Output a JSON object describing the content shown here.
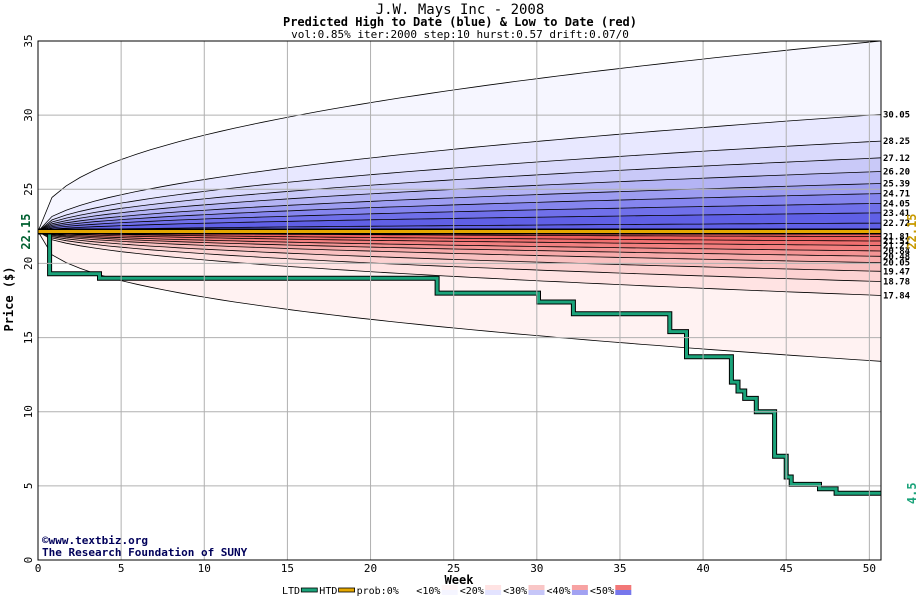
{
  "chart_data": {
    "type": "area",
    "title": "J.W. Mays Inc - 2008",
    "subtitle": "Predicted High to Date (blue) &  Low to Date (red)",
    "params": "vol:0.85% iter:2000 step:10 hurst:0.57 drift:0.07/0",
    "xlabel": "Week",
    "ylabel": "Price ($)",
    "xlim": [
      0,
      50.7
    ],
    "ylim": [
      0,
      35
    ],
    "x_ticks": [
      0,
      5,
      10,
      15,
      20,
      25,
      30,
      35,
      40,
      45,
      50
    ],
    "y_ticks": [
      0,
      5,
      10,
      15,
      20,
      25,
      30,
      35
    ],
    "grid": true,
    "start_price": 22.15,
    "start_label": "22.15",
    "last_price": 4.5,
    "last_label": "4.5",
    "credit_lines": [
      "©www.textbiz.org",
      "The Research Foundation of SUNY"
    ],
    "upper_band_ends": [
      {
        "label": "30.05",
        "value": 30.05
      },
      {
        "label": "28.25",
        "value": 28.25
      },
      {
        "label": "27.12",
        "value": 27.12
      },
      {
        "label": "26.20",
        "value": 26.2
      },
      {
        "label": "25.39",
        "value": 25.39
      },
      {
        "label": "24.71",
        "value": 24.71
      },
      {
        "label": "24.05",
        "value": 24.05
      },
      {
        "label": "23.41",
        "value": 23.41
      },
      {
        "label": "22.72",
        "value": 22.72
      }
    ],
    "lower_band_ends": [
      {
        "label": "21.81",
        "value": 21.81
      },
      {
        "label": "21.51",
        "value": 21.51
      },
      {
        "label": "21.21",
        "value": 21.21
      },
      {
        "label": "20.84",
        "value": 20.84
      },
      {
        "label": "20.48",
        "value": 20.48
      },
      {
        "label": "20.05",
        "value": 20.05
      },
      {
        "label": "19.47",
        "value": 19.47
      },
      {
        "label": "18.78",
        "value": 18.78
      },
      {
        "label": "17.84",
        "value": 17.84
      }
    ],
    "outer_envelope": {
      "upper_end": 35.0,
      "lower_end": 13.4
    },
    "series": [
      {
        "name": "LTD",
        "color": "#1aa37a",
        "x": [
          0,
          0.7,
          0.7,
          3.7,
          3.7,
          24.0,
          24.0,
          30.1,
          30.1,
          32.2,
          32.2,
          38.0,
          38.0,
          39.0,
          39.0,
          41.7,
          41.7,
          42.1,
          42.1,
          42.5,
          42.5,
          43.2,
          43.2,
          44.3,
          44.3,
          45.0,
          45.0,
          45.3,
          45.3,
          47.0,
          47.0,
          48.0,
          48.0,
          50.7
        ],
        "y": [
          22.15,
          22.15,
          19.3,
          19.3,
          19.0,
          19.0,
          18.0,
          18.0,
          17.4,
          17.4,
          16.6,
          16.6,
          15.4,
          15.4,
          13.7,
          13.7,
          12.0,
          12.0,
          11.4,
          11.4,
          10.9,
          10.9,
          10.0,
          10.0,
          7.0,
          7.0,
          5.6,
          5.6,
          5.1,
          5.1,
          4.8,
          4.8,
          4.5,
          4.5
        ]
      },
      {
        "name": "HTD",
        "color": "#e6a800",
        "x": [
          0,
          50.7
        ],
        "y": [
          22.15,
          22.15
        ]
      }
    ],
    "legend": [
      {
        "label": "LTD",
        "color": "#1aa37a",
        "kind": "line"
      },
      {
        "label": "HTD",
        "color": "#e6a800",
        "kind": "line"
      },
      {
        "label": "prob:0%",
        "color": "#ffffff",
        "kind": "swatch"
      },
      {
        "label": "<10%",
        "color": "#f5f5ff",
        "kind": "swatch-pair",
        "pair": "#fff5f5"
      },
      {
        "label": "<20%",
        "color": "#e3e3ff",
        "kind": "swatch-pair",
        "pair": "#ffe3e3"
      },
      {
        "label": "<30%",
        "color": "#c6c6f8",
        "kind": "swatch-pair",
        "pair": "#f9c6c6"
      },
      {
        "label": "<40%",
        "color": "#a2a2f2",
        "kind": "swatch-pair",
        "pair": "#f7a2a2"
      },
      {
        "label": "<50%",
        "color": "#7777ec",
        "kind": "swatch-pair",
        "pair": "#f27777"
      }
    ],
    "colors": {
      "upper_bands": [
        "#f6f6ff",
        "#e8e8ff",
        "#dadafc",
        "#c9c9f8",
        "#b4b4f4",
        "#9d9df1",
        "#8585ee",
        "#7070ea",
        "#6060e6"
      ],
      "lower_bands": [
        "#fff2f2",
        "#ffe3e3",
        "#fcd2d2",
        "#f9c0c0",
        "#f7aaaa",
        "#f49494",
        "#f28080",
        "#f07070",
        "#ee6262"
      ],
      "grid": "#b0b0b0"
    }
  }
}
